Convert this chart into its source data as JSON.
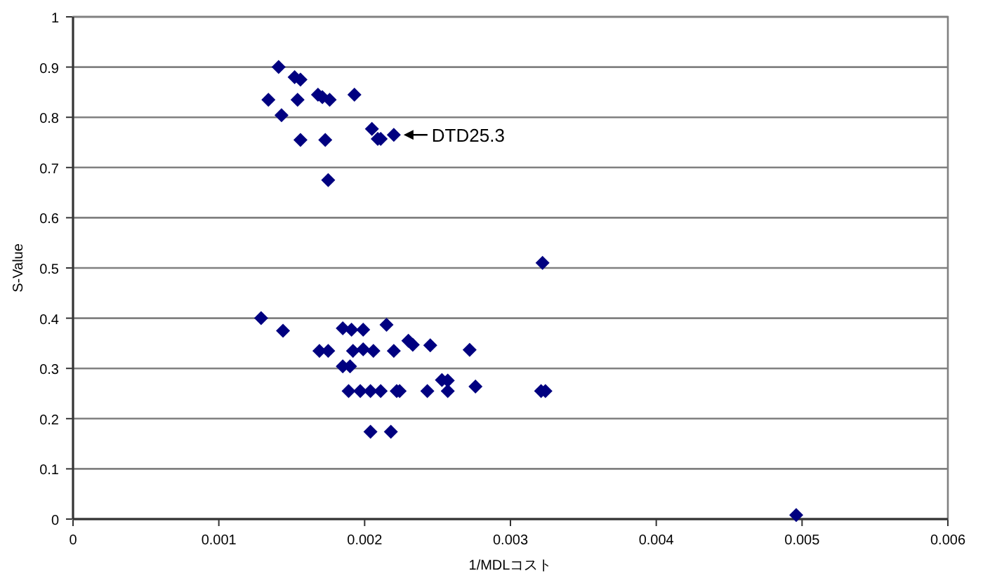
{
  "chart_data": {
    "type": "scatter",
    "xlabel": "1/MDLコスト",
    "ylabel": "S-Value",
    "xlim": [
      0,
      0.006
    ],
    "ylim": [
      0,
      1
    ],
    "xticks": [
      0,
      0.001,
      0.002,
      0.003,
      0.004,
      0.005,
      0.006
    ],
    "yticks": [
      0,
      0.1,
      0.2,
      0.3,
      0.4,
      0.5,
      0.6,
      0.7,
      0.8,
      0.9,
      1
    ],
    "grid": "y",
    "marker": "diamond",
    "annotations": [
      {
        "text": "DTD25.3",
        "x": 0.0022,
        "y": 0.765
      }
    ],
    "series": [
      {
        "color": "#000080",
        "x": [
          0.00141,
          0.00152,
          0.00156,
          0.00134,
          0.00154,
          0.00168,
          0.00171,
          0.00176,
          0.00193,
          0.00143,
          0.00205,
          0.00209,
          0.00211,
          0.0022,
          0.00156,
          0.00173,
          0.00175,
          0.00129,
          0.00144,
          0.00185,
          0.00191,
          0.00199,
          0.00215,
          0.0023,
          0.00233,
          0.00245,
          0.00272,
          0.00169,
          0.00175,
          0.00192,
          0.00199,
          0.00206,
          0.0022,
          0.00185,
          0.0019,
          0.00253,
          0.00257,
          0.00257,
          0.00276,
          0.00189,
          0.00197,
          0.00204,
          0.00211,
          0.00222,
          0.00224,
          0.00243,
          0.00321,
          0.00324,
          0.00204,
          0.00218,
          0.00322,
          0.00496
        ],
        "values": [
          0.9,
          0.88,
          0.875,
          0.835,
          0.835,
          0.845,
          0.84,
          0.835,
          0.845,
          0.804,
          0.777,
          0.757,
          0.757,
          0.765,
          0.755,
          0.755,
          0.675,
          0.4,
          0.375,
          0.38,
          0.377,
          0.377,
          0.387,
          0.355,
          0.347,
          0.346,
          0.337,
          0.335,
          0.335,
          0.335,
          0.338,
          0.335,
          0.335,
          0.304,
          0.304,
          0.277,
          0.276,
          0.255,
          0.264,
          0.255,
          0.255,
          0.255,
          0.255,
          0.255,
          0.255,
          0.255,
          0.255,
          0.255,
          0.174,
          0.174,
          0.51,
          0.008
        ]
      }
    ]
  }
}
